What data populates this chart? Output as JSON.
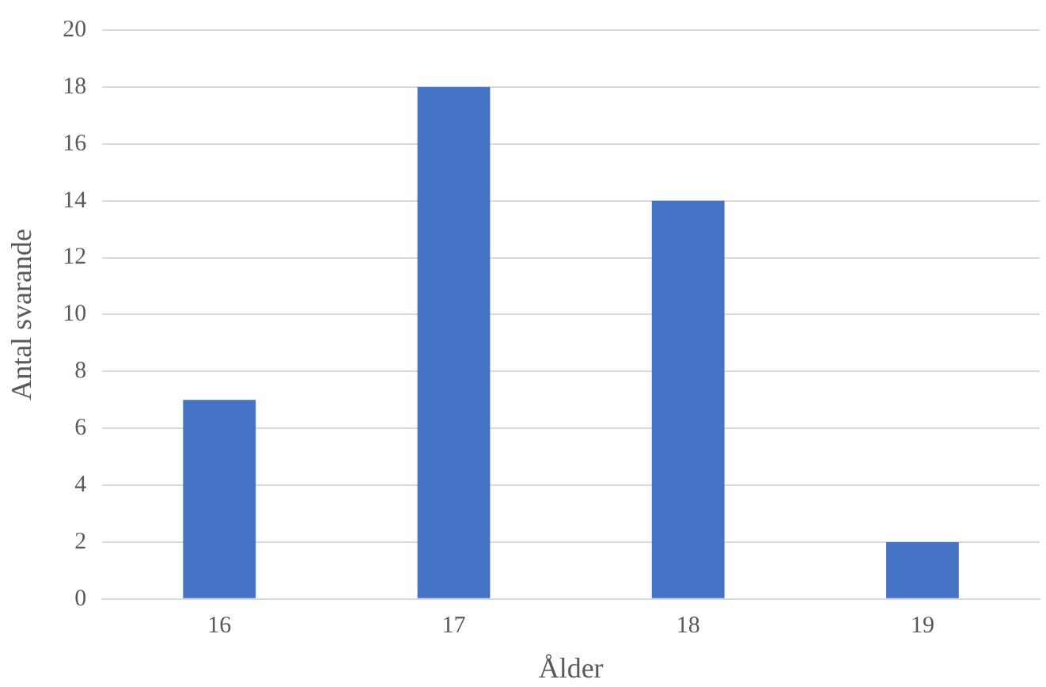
{
  "chart_data": {
    "type": "bar",
    "xlabel": "Ålder",
    "ylabel": "Antal svarande",
    "categories": [
      "16",
      "17",
      "18",
      "19"
    ],
    "values": [
      7,
      18,
      14,
      2
    ],
    "color": "#4472c4",
    "ylim": [
      0,
      20
    ],
    "yticks": [
      0,
      2,
      4,
      6,
      8,
      10,
      12,
      14,
      16,
      18,
      20
    ],
    "grid": "y",
    "legend": false
  }
}
